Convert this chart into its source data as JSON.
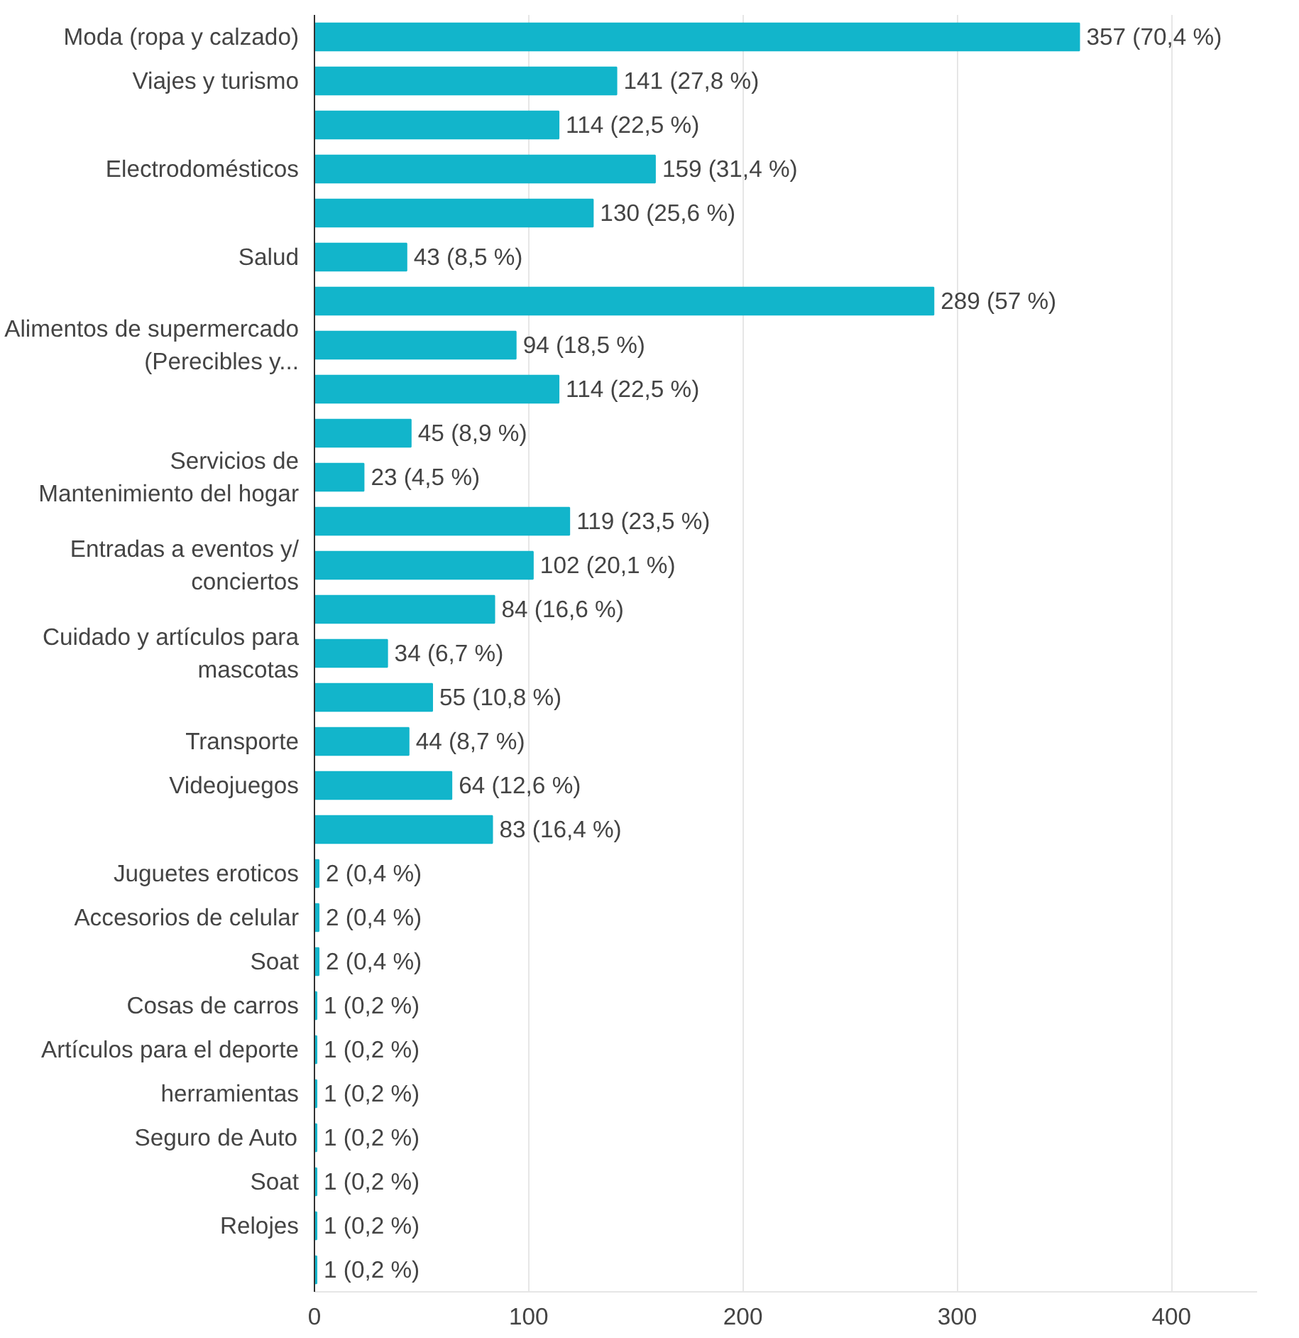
{
  "chart_data": {
    "type": "bar",
    "orientation": "horizontal",
    "categories": [
      "Moda (ropa y calzado)",
      "Viajes y turismo",
      null,
      "Electrodomésticos",
      null,
      "Salud",
      null,
      "Alimentos de supermercado (Perecibles y...",
      null,
      null,
      "Servicios de Mantenimiento del hogar",
      null,
      "Entradas a eventos y/ conciertos",
      null,
      "Cuidado y artículos para mascotas",
      null,
      "Transporte",
      "Videojuegos",
      null,
      "Juguetes eroticos",
      "Accesorios de celular",
      "Soat",
      "Cosas de carros",
      "Artículos para el deporte",
      "herramientas",
      "Seguro de Auto",
      "Soat",
      "Relojes",
      null
    ],
    "values": [
      357,
      141,
      114,
      159,
      130,
      43,
      289,
      94,
      114,
      45,
      23,
      119,
      102,
      84,
      34,
      55,
      44,
      64,
      83,
      2,
      2,
      2,
      1,
      1,
      1,
      1,
      1,
      1,
      1
    ],
    "value_labels": [
      "357 (70,4 %)",
      "141 (27,8 %)",
      "114 (22,5 %)",
      "159 (31,4 %)",
      "130 (25,6 %)",
      "43 (8,5 %)",
      "289 (57 %)",
      "94 (18,5 %)",
      "114 (22,5 %)",
      "45 (8,9 %)",
      "23 (4,5 %)",
      "119 (23,5 %)",
      "102 (20,1 %)",
      "84 (16,6 %)",
      "34 (6,7 %)",
      "55 (10,8 %)",
      "44 (8,7 %)",
      "64 (12,6 %)",
      "83 (16,4 %)",
      "2 (0,4 %)",
      "2 (0,4 %)",
      "2 (0,4 %)",
      "1 (0,2 %)",
      "1 (0,2 %)",
      "1 (0,2 %)",
      "1 (0,2 %)",
      "1 (0,2 %)",
      "1 (0,2 %)",
      "1 (0,2 %)"
    ],
    "color": "#12b5cb",
    "xlim": [
      0,
      440
    ],
    "xticks": [
      0,
      100,
      200,
      300,
      400
    ],
    "grid": "x"
  }
}
